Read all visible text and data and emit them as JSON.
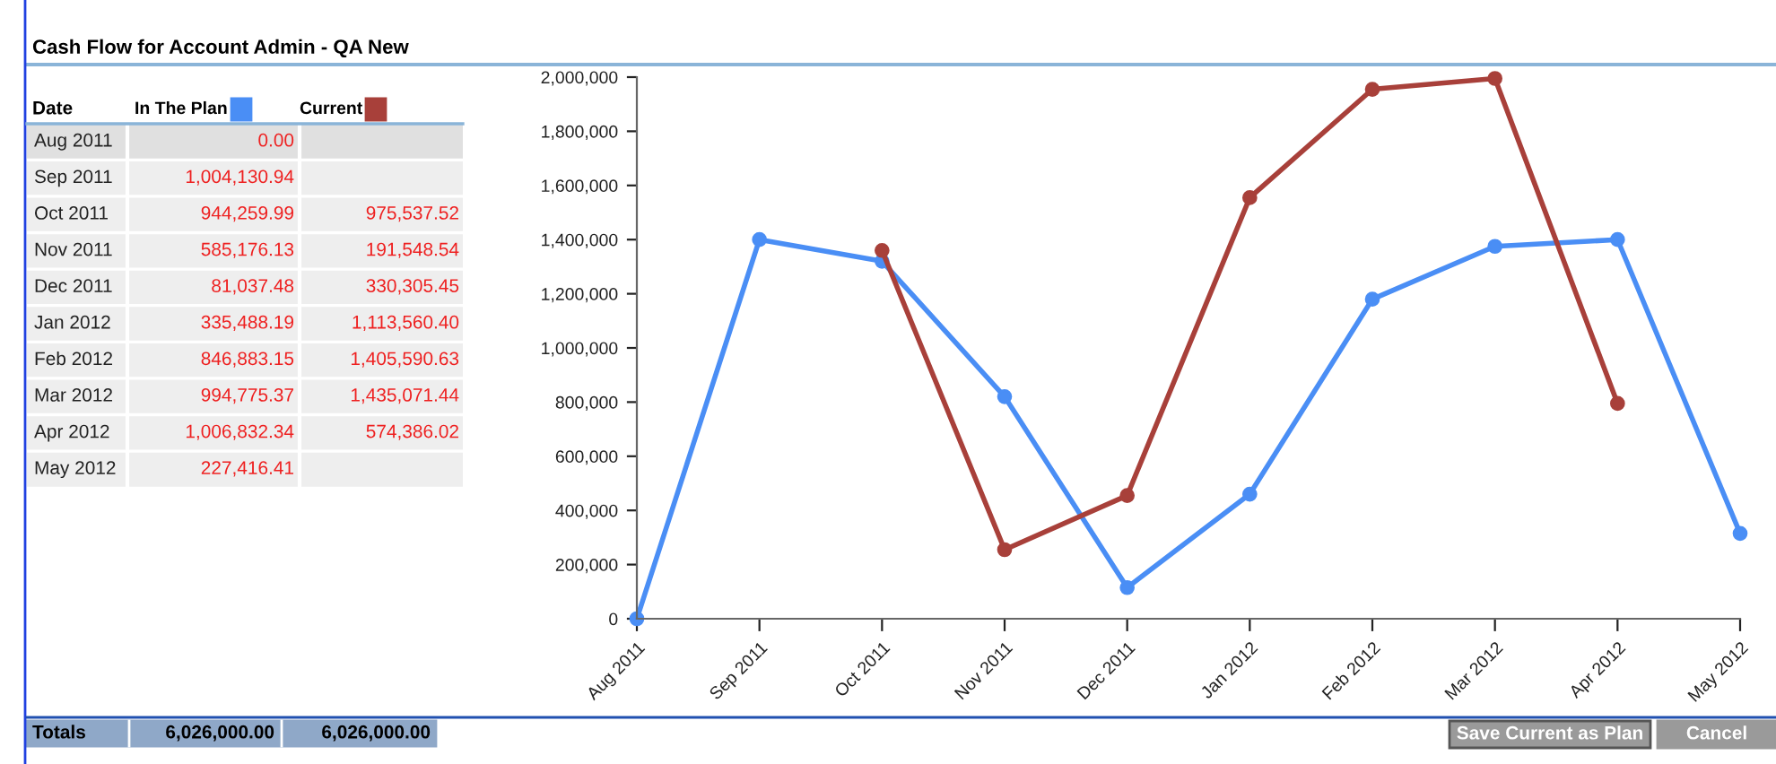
{
  "chart_data": [
    {
      "type": "other",
      "title": "Cash Flow for Account Admin - QA New",
      "categories": [
        "Aug 2011",
        "Sep 2011",
        "Oct 2011",
        "Nov 2011",
        "Dec 2011",
        "Jan 2012",
        "Feb 2012",
        "Mar 2012",
        "Apr 2012",
        "May 2012"
      ],
      "series": [
        {
          "name": "In The Plan",
          "color": "#4a8ef5",
          "values": [
            0.0,
            1004130.94,
            944259.99,
            585176.13,
            81037.48,
            335488.19,
            846883.15,
            994775.37,
            1006832.34,
            227416.41
          ],
          "value_labels": [
            "0.00",
            "1,004,130.94",
            "944,259.99",
            "585,176.13",
            "81,037.48",
            "335,488.19",
            "846,883.15",
            "994,775.37",
            "1,006,832.34",
            "227,416.41"
          ]
        },
        {
          "name": "Current",
          "color": "#a8403a",
          "values": [
            null,
            null,
            975537.52,
            191548.54,
            330305.45,
            1113560.4,
            1405590.63,
            1435071.44,
            574386.02,
            null
          ],
          "value_labels": [
            null,
            null,
            "975,537.52",
            "191,548.54",
            "330,305.45",
            "1,113,560.40",
            "1,405,590.63",
            "1,435,071.44",
            "574,386.02",
            null
          ]
        }
      ],
      "annotations": [
        "Date",
        "Totals",
        "6,026,000.00",
        "6,026,000.00",
        "Save Current as Plan",
        "Cancel"
      ]
    },
    {
      "type": "line",
      "categories": [
        "Aug 2011",
        "Sep 2011",
        "Oct 2011",
        "Nov 2011",
        "Dec 2011",
        "Jan 2012",
        "Feb 2012",
        "Mar 2012",
        "Apr 2012",
        "May 2012"
      ],
      "series": [
        {
          "color": "#4a8ef5",
          "values": [
            0,
            1400000,
            1320000,
            820000,
            115000,
            460000,
            1180000,
            1375000,
            1400000,
            315000
          ]
        },
        {
          "color": "#a8403a",
          "values": [
            null,
            null,
            1360000,
            255000,
            455000,
            1555000,
            1955000,
            1995000,
            795000,
            null
          ]
        }
      ],
      "ylim": [
        0,
        2000000
      ],
      "yticks": [
        {
          "value": 0,
          "label": "0"
        },
        {
          "value": 200000,
          "label": "200,000"
        },
        {
          "value": 400000,
          "label": "400,000"
        },
        {
          "value": 600000,
          "label": "600,000"
        },
        {
          "value": 800000,
          "label": "800,000"
        },
        {
          "value": 1000000,
          "label": "1,000,000"
        },
        {
          "value": 1200000,
          "label": "1,200,000"
        },
        {
          "value": 1400000,
          "label": "1,400,000"
        },
        {
          "value": 1600000,
          "label": "1,600,000"
        },
        {
          "value": 1800000,
          "label": "1,800,000"
        },
        {
          "value": 2000000,
          "label": "2,000,000"
        }
      ],
      "marker": "circle"
    }
  ]
}
